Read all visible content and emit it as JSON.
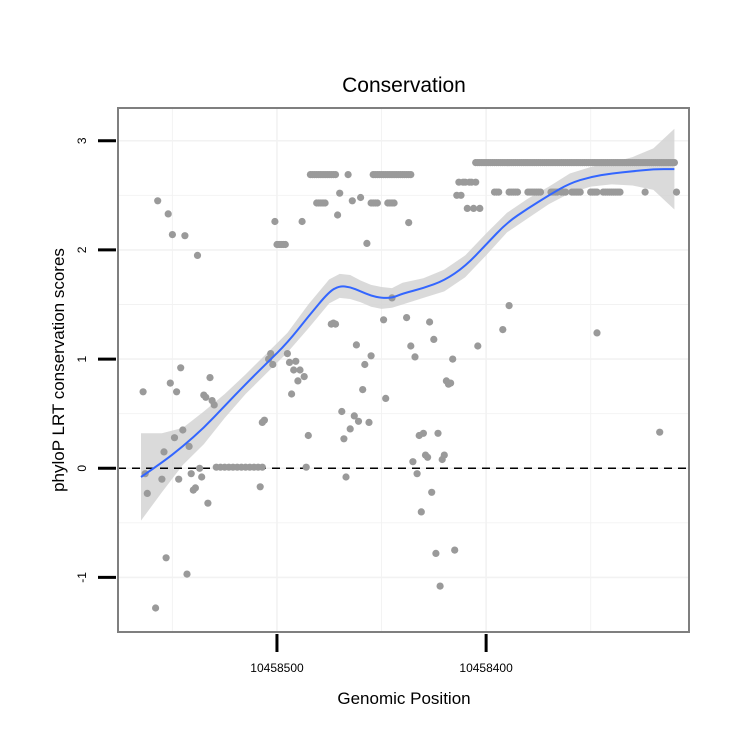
{
  "chart_data": {
    "type": "scatter",
    "title": "Conservation",
    "xlabel": "Genomic Position",
    "ylabel": "phyloP LRT conservation scores",
    "x_reversed": true,
    "xlim": [
      10458576,
      10458303
    ],
    "ylim": [
      -1.5,
      3.3
    ],
    "x_ticks": [
      {
        "value": 10458500,
        "label": "10458500"
      },
      {
        "value": 10458400,
        "label": "10458400"
      }
    ],
    "y_ticks": [
      {
        "value": -1,
        "label": "-1"
      },
      {
        "value": 0,
        "label": "0"
      },
      {
        "value": 1,
        "label": "1"
      },
      {
        "value": 2,
        "label": "2"
      },
      {
        "value": 3,
        "label": "3"
      }
    ],
    "grid": true,
    "reference_line": {
      "y": 0,
      "style": "dashed"
    },
    "colors": {
      "points": "#9a9a9a",
      "smooth": "#3366ff",
      "ribbon": "#d3d3d3",
      "border": "#7f7f7f"
    },
    "points": [
      [
        10458564,
        0.7
      ],
      [
        10458563,
        -0.05
      ],
      [
        10458562,
        -0.23
      ],
      [
        10458558,
        -1.28
      ],
      [
        10458557,
        2.45
      ],
      [
        10458555,
        -0.1
      ],
      [
        10458554,
        0.15
      ],
      [
        10458553,
        -0.82
      ],
      [
        10458552,
        2.33
      ],
      [
        10458551,
        0.78
      ],
      [
        10458550,
        2.14
      ],
      [
        10458549,
        0.28
      ],
      [
        10458548,
        0.7
      ],
      [
        10458547,
        -0.1
      ],
      [
        10458546,
        0.92
      ],
      [
        10458545,
        0.35
      ],
      [
        10458544,
        2.13
      ],
      [
        10458543,
        -0.97
      ],
      [
        10458542,
        0.2
      ],
      [
        10458541,
        -0.05
      ],
      [
        10458540,
        -0.2
      ],
      [
        10458539,
        -0.18
      ],
      [
        10458538,
        1.95
      ],
      [
        10458537,
        0.0
      ],
      [
        10458536,
        -0.08
      ],
      [
        10458535,
        0.67
      ],
      [
        10458534,
        0.65
      ],
      [
        10458533,
        -0.32
      ],
      [
        10458532,
        0.83
      ],
      [
        10458531,
        0.62
      ],
      [
        10458530,
        0.58
      ],
      [
        10458529,
        0.01
      ],
      [
        10458527,
        0.01
      ],
      [
        10458525,
        0.01
      ],
      [
        10458523,
        0.01
      ],
      [
        10458521,
        0.01
      ],
      [
        10458519,
        0.01
      ],
      [
        10458517,
        0.01
      ],
      [
        10458515,
        0.01
      ],
      [
        10458513,
        0.01
      ],
      [
        10458511,
        0.01
      ],
      [
        10458509,
        0.01
      ],
      [
        10458507,
        0.01
      ],
      [
        10458508,
        -0.17
      ],
      [
        10458507,
        0.42
      ],
      [
        10458506,
        0.44
      ],
      [
        10458504,
        1.0
      ],
      [
        10458503,
        1.05
      ],
      [
        10458502,
        0.95
      ],
      [
        10458501,
        2.26
      ],
      [
        10458500,
        2.05
      ],
      [
        10458499,
        2.05
      ],
      [
        10458498,
        2.05
      ],
      [
        10458497,
        2.05
      ],
      [
        10458496,
        2.05
      ],
      [
        10458495,
        1.05
      ],
      [
        10458494,
        0.97
      ],
      [
        10458493,
        0.68
      ],
      [
        10458492,
        0.9
      ],
      [
        10458491,
        0.98
      ],
      [
        10458490,
        0.8
      ],
      [
        10458489,
        0.9
      ],
      [
        10458488,
        2.26
      ],
      [
        10458487,
        0.84
      ],
      [
        10458486,
        0.01
      ],
      [
        10458485,
        0.3
      ],
      [
        10458484,
        2.69
      ],
      [
        10458483,
        2.69
      ],
      [
        10458482,
        2.69
      ],
      [
        10458481,
        2.69
      ],
      [
        10458480,
        2.69
      ],
      [
        10458479,
        2.69
      ],
      [
        10458478,
        2.69
      ],
      [
        10458477,
        2.69
      ],
      [
        10458476,
        2.69
      ],
      [
        10458475,
        2.69
      ],
      [
        10458474,
        2.69
      ],
      [
        10458473,
        2.69
      ],
      [
        10458472,
        2.69
      ],
      [
        10458481,
        2.43
      ],
      [
        10458480,
        2.43
      ],
      [
        10458479,
        2.43
      ],
      [
        10458478,
        2.43
      ],
      [
        10458477,
        2.43
      ],
      [
        10458474,
        1.32
      ],
      [
        10458473,
        1.33
      ],
      [
        10458472,
        1.32
      ],
      [
        10458471,
        2.32
      ],
      [
        10458470,
        2.52
      ],
      [
        10458469,
        0.52
      ],
      [
        10458468,
        0.27
      ],
      [
        10458467,
        -0.08
      ],
      [
        10458466,
        2.69
      ],
      [
        10458465,
        0.36
      ],
      [
        10458464,
        2.45
      ],
      [
        10458463,
        0.48
      ],
      [
        10458462,
        1.13
      ],
      [
        10458461,
        0.43
      ],
      [
        10458460,
        2.48
      ],
      [
        10458459,
        0.72
      ],
      [
        10458458,
        0.95
      ],
      [
        10458457,
        2.06
      ],
      [
        10458456,
        0.42
      ],
      [
        10458455,
        1.03
      ],
      [
        10458454,
        2.69
      ],
      [
        10458453,
        2.69
      ],
      [
        10458452,
        2.69
      ],
      [
        10458451,
        2.69
      ],
      [
        10458450,
        2.69
      ],
      [
        10458449,
        2.69
      ],
      [
        10458448,
        2.69
      ],
      [
        10458447,
        2.69
      ],
      [
        10458446,
        2.69
      ],
      [
        10458445,
        2.69
      ],
      [
        10458444,
        2.69
      ],
      [
        10458443,
        2.69
      ],
      [
        10458442,
        2.69
      ],
      [
        10458441,
        2.69
      ],
      [
        10458440,
        2.69
      ],
      [
        10458439,
        2.69
      ],
      [
        10458438,
        2.69
      ],
      [
        10458437,
        2.69
      ],
      [
        10458436,
        2.69
      ],
      [
        10458455,
        2.43
      ],
      [
        10458454,
        2.43
      ],
      [
        10458453,
        2.43
      ],
      [
        10458452,
        2.43
      ],
      [
        10458447,
        2.43
      ],
      [
        10458446,
        2.43
      ],
      [
        10458445,
        2.43
      ],
      [
        10458444,
        2.43
      ],
      [
        10458449,
        1.36
      ],
      [
        10458448,
        0.64
      ],
      [
        10458445,
        1.56
      ],
      [
        10458438,
        1.38
      ],
      [
        10458437,
        2.25
      ],
      [
        10458436,
        1.12
      ],
      [
        10458435,
        0.06
      ],
      [
        10458434,
        1.02
      ],
      [
        10458433,
        -0.05
      ],
      [
        10458432,
        0.3
      ],
      [
        10458431,
        -0.4
      ],
      [
        10458430,
        0.32
      ],
      [
        10458429,
        0.12
      ],
      [
        10458428,
        0.1
      ],
      [
        10458427,
        1.34
      ],
      [
        10458426,
        -0.22
      ],
      [
        10458425,
        1.18
      ],
      [
        10458424,
        -0.78
      ],
      [
        10458423,
        0.32
      ],
      [
        10458422,
        -1.08
      ],
      [
        10458421,
        0.08
      ],
      [
        10458420,
        0.12
      ],
      [
        10458419,
        0.8
      ],
      [
        10458418,
        0.77
      ],
      [
        10458417,
        0.78
      ],
      [
        10458416,
        1.0
      ],
      [
        10458415,
        -0.75
      ],
      [
        10458414,
        2.5
      ],
      [
        10458413,
        2.62
      ],
      [
        10458412,
        2.5
      ],
      [
        10458411,
        2.62
      ],
      [
        10458410,
        2.62
      ],
      [
        10458409,
        2.38
      ],
      [
        10458408,
        2.62
      ],
      [
        10458407,
        2.62
      ],
      [
        10458406,
        2.38
      ],
      [
        10458405,
        2.62
      ],
      [
        10458404,
        1.12
      ],
      [
        10458403,
        2.38
      ],
      [
        10458405,
        2.8
      ],
      [
        10458404,
        2.8
      ],
      [
        10458403,
        2.8
      ],
      [
        10458402,
        2.8
      ],
      [
        10458401,
        2.8
      ],
      [
        10458400,
        2.8
      ],
      [
        10458399,
        2.8
      ],
      [
        10458398,
        2.8
      ],
      [
        10458397,
        2.8
      ],
      [
        10458396,
        2.8
      ],
      [
        10458395,
        2.8
      ],
      [
        10458394,
        2.8
      ],
      [
        10458393,
        2.8
      ],
      [
        10458392,
        2.8
      ],
      [
        10458391,
        2.8
      ],
      [
        10458390,
        2.8
      ],
      [
        10458389,
        2.8
      ],
      [
        10458388,
        2.8
      ],
      [
        10458387,
        2.8
      ],
      [
        10458386,
        2.8
      ],
      [
        10458385,
        2.8
      ],
      [
        10458384,
        2.8
      ],
      [
        10458383,
        2.8
      ],
      [
        10458382,
        2.8
      ],
      [
        10458381,
        2.8
      ],
      [
        10458380,
        2.8
      ],
      [
        10458379,
        2.8
      ],
      [
        10458378,
        2.8
      ],
      [
        10458377,
        2.8
      ],
      [
        10458376,
        2.8
      ],
      [
        10458375,
        2.8
      ],
      [
        10458374,
        2.8
      ],
      [
        10458373,
        2.8
      ],
      [
        10458372,
        2.8
      ],
      [
        10458371,
        2.8
      ],
      [
        10458370,
        2.8
      ],
      [
        10458369,
        2.8
      ],
      [
        10458368,
        2.8
      ],
      [
        10458367,
        2.8
      ],
      [
        10458366,
        2.8
      ],
      [
        10458365,
        2.8
      ],
      [
        10458364,
        2.8
      ],
      [
        10458363,
        2.8
      ],
      [
        10458362,
        2.8
      ],
      [
        10458361,
        2.8
      ],
      [
        10458360,
        2.8
      ],
      [
        10458359,
        2.8
      ],
      [
        10458358,
        2.8
      ],
      [
        10458357,
        2.8
      ],
      [
        10458356,
        2.8
      ],
      [
        10458355,
        2.8
      ],
      [
        10458354,
        2.8
      ],
      [
        10458353,
        2.8
      ],
      [
        10458352,
        2.8
      ],
      [
        10458351,
        2.8
      ],
      [
        10458350,
        2.8
      ],
      [
        10458349,
        2.8
      ],
      [
        10458348,
        2.8
      ],
      [
        10458347,
        2.8
      ],
      [
        10458346,
        2.8
      ],
      [
        10458345,
        2.8
      ],
      [
        10458344,
        2.8
      ],
      [
        10458343,
        2.8
      ],
      [
        10458342,
        2.8
      ],
      [
        10458341,
        2.8
      ],
      [
        10458340,
        2.8
      ],
      [
        10458339,
        2.8
      ],
      [
        10458338,
        2.8
      ],
      [
        10458337,
        2.8
      ],
      [
        10458336,
        2.8
      ],
      [
        10458335,
        2.8
      ],
      [
        10458334,
        2.8
      ],
      [
        10458333,
        2.8
      ],
      [
        10458332,
        2.8
      ],
      [
        10458331,
        2.8
      ],
      [
        10458330,
        2.8
      ],
      [
        10458329,
        2.8
      ],
      [
        10458328,
        2.8
      ],
      [
        10458327,
        2.8
      ],
      [
        10458326,
        2.8
      ],
      [
        10458325,
        2.8
      ],
      [
        10458324,
        2.8
      ],
      [
        10458323,
        2.8
      ],
      [
        10458322,
        2.8
      ],
      [
        10458321,
        2.8
      ],
      [
        10458320,
        2.8
      ],
      [
        10458319,
        2.8
      ],
      [
        10458318,
        2.8
      ],
      [
        10458317,
        2.8
      ],
      [
        10458316,
        2.8
      ],
      [
        10458315,
        2.8
      ],
      [
        10458314,
        2.8
      ],
      [
        10458313,
        2.8
      ],
      [
        10458312,
        2.8
      ],
      [
        10458311,
        2.8
      ],
      [
        10458310,
        2.8
      ],
      [
        10458396,
        2.53
      ],
      [
        10458395,
        2.53
      ],
      [
        10458394,
        2.53
      ],
      [
        10458389,
        2.53
      ],
      [
        10458388,
        2.53
      ],
      [
        10458387,
        2.53
      ],
      [
        10458386,
        2.53
      ],
      [
        10458385,
        2.53
      ],
      [
        10458380,
        2.53
      ],
      [
        10458379,
        2.53
      ],
      [
        10458378,
        2.53
      ],
      [
        10458377,
        2.53
      ],
      [
        10458376,
        2.53
      ],
      [
        10458375,
        2.53
      ],
      [
        10458374,
        2.53
      ],
      [
        10458369,
        2.53
      ],
      [
        10458368,
        2.53
      ],
      [
        10458367,
        2.53
      ],
      [
        10458366,
        2.53
      ],
      [
        10458364,
        2.53
      ],
      [
        10458363,
        2.53
      ],
      [
        10458362,
        2.53
      ],
      [
        10458359,
        2.53
      ],
      [
        10458358,
        2.53
      ],
      [
        10458357,
        2.53
      ],
      [
        10458356,
        2.53
      ],
      [
        10458355,
        2.53
      ],
      [
        10458350,
        2.53
      ],
      [
        10458349,
        2.53
      ],
      [
        10458348,
        2.53
      ],
      [
        10458347,
        2.53
      ],
      [
        10458344,
        2.53
      ],
      [
        10458343,
        2.53
      ],
      [
        10458342,
        2.53
      ],
      [
        10458341,
        2.53
      ],
      [
        10458340,
        2.53
      ],
      [
        10458339,
        2.53
      ],
      [
        10458338,
        2.53
      ],
      [
        10458337,
        2.53
      ],
      [
        10458336,
        2.53
      ],
      [
        10458324,
        2.53
      ],
      [
        10458309,
        2.53
      ],
      [
        10458392,
        1.27
      ],
      [
        10458389,
        1.49
      ],
      [
        10458347,
        1.24
      ],
      [
        10458317,
        0.33
      ]
    ],
    "smooth": {
      "x": [
        10458565,
        10458555,
        10458545,
        10458535,
        10458525,
        10458515,
        10458505,
        10458495,
        10458485,
        10458475,
        10458470,
        10458465,
        10458460,
        10458455,
        10458450,
        10458445,
        10458440,
        10458430,
        10458420,
        10458410,
        10458400,
        10458390,
        10458380,
        10458370,
        10458360,
        10458350,
        10458340,
        10458330,
        10458320,
        10458310
      ],
      "y": [
        -0.08,
        0.05,
        0.2,
        0.37,
        0.57,
        0.77,
        0.96,
        1.15,
        1.39,
        1.62,
        1.67,
        1.66,
        1.62,
        1.58,
        1.56,
        1.56,
        1.6,
        1.65,
        1.72,
        1.85,
        2.05,
        2.25,
        2.38,
        2.5,
        2.61,
        2.67,
        2.7,
        2.72,
        2.74,
        2.74
      ],
      "lower": [
        -0.48,
        -0.22,
        0.03,
        0.22,
        0.46,
        0.68,
        0.87,
        1.06,
        1.28,
        1.51,
        1.56,
        1.55,
        1.52,
        1.48,
        1.46,
        1.47,
        1.5,
        1.56,
        1.62,
        1.75,
        1.95,
        2.16,
        2.29,
        2.42,
        2.52,
        2.58,
        2.6,
        2.59,
        2.55,
        2.37
      ],
      "upper": [
        0.32,
        0.32,
        0.37,
        0.52,
        0.68,
        0.86,
        1.05,
        1.24,
        1.5,
        1.73,
        1.78,
        1.77,
        1.72,
        1.68,
        1.66,
        1.65,
        1.7,
        1.74,
        1.82,
        1.95,
        2.15,
        2.34,
        2.47,
        2.58,
        2.7,
        2.76,
        2.8,
        2.85,
        2.93,
        3.11
      ]
    }
  }
}
